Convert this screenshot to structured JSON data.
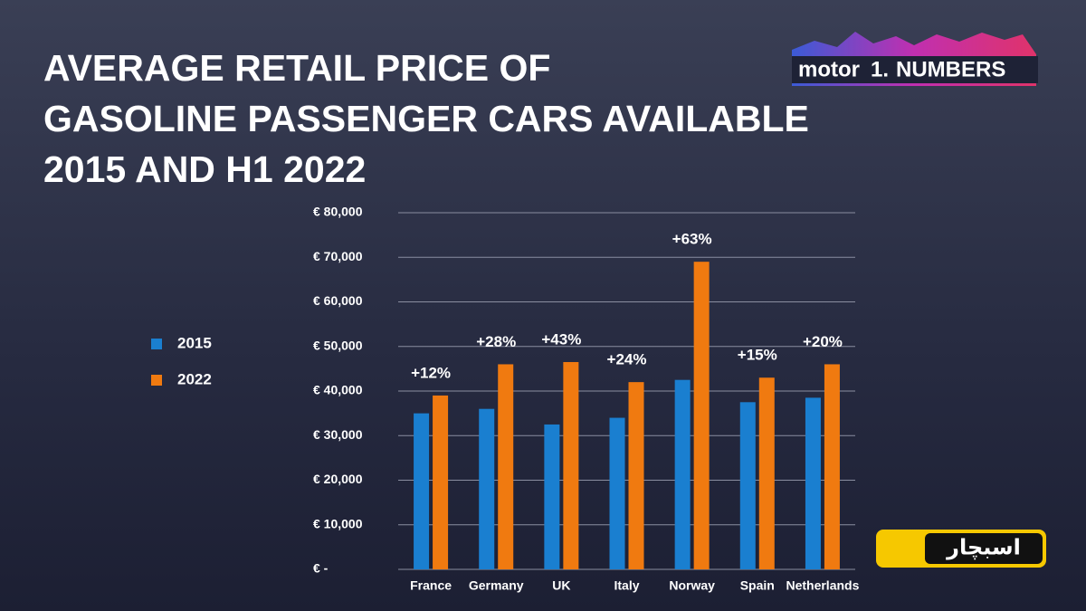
{
  "chart_data": {
    "type": "bar",
    "title": [
      "AVERAGE RETAIL PRICE OF",
      "GASOLINE PASSENGER CARS AVAILABLE",
      "2015 AND H1 2022"
    ],
    "categories": [
      "France",
      "Germany",
      "UK",
      "Italy",
      "Norway",
      "Spain",
      "Netherlands"
    ],
    "series": [
      {
        "name": "2015",
        "color": "#1a7fd0",
        "values": [
          35000,
          36000,
          32500,
          34000,
          42500,
          37500,
          38500
        ]
      },
      {
        "name": "2022",
        "color": "#f07a10",
        "values": [
          39000,
          46000,
          46500,
          42000,
          69000,
          43000,
          46000
        ]
      }
    ],
    "changes": [
      "+12%",
      "+28%",
      "+43%",
      "+24%",
      "+63%",
      "+15%",
      "+20%"
    ],
    "ylim": [
      0,
      80000
    ],
    "yticks": [
      {
        "value": 0,
        "label": "€ -"
      },
      {
        "value": 10000,
        "label": "€ 10,000"
      },
      {
        "value": 20000,
        "label": "€ 20,000"
      },
      {
        "value": 30000,
        "label": "€ 30,000"
      },
      {
        "value": 40000,
        "label": "€ 40,000"
      },
      {
        "value": 50000,
        "label": "€ 50,000"
      },
      {
        "value": 60000,
        "label": "€ 60,000"
      },
      {
        "value": 70000,
        "label": "€ 70,000"
      },
      {
        "value": 80000,
        "label": "€ 80,000"
      }
    ],
    "grid": true,
    "legend": "left"
  },
  "branding": {
    "motor": "motor",
    "one": "1.",
    "numbers": "NUMBERS",
    "watermark": "اسبچار"
  }
}
